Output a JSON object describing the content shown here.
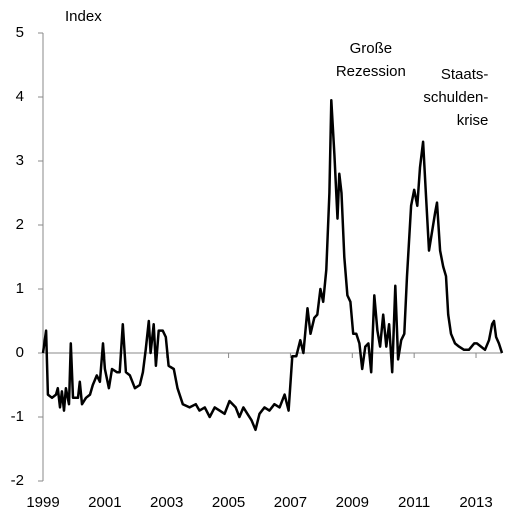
{
  "chart_data": {
    "type": "line",
    "y_label": "Index",
    "x": [
      1999.0,
      1999.1,
      1999.16,
      1999.29,
      1999.42,
      1999.48,
      1999.55,
      1999.61,
      1999.68,
      1999.74,
      1999.84,
      1999.9,
      1999.97,
      2000.13,
      2000.19,
      2000.26,
      2000.39,
      2000.52,
      2000.61,
      2000.74,
      2000.84,
      2000.94,
      2001.0,
      2001.13,
      2001.23,
      2001.39,
      2001.48,
      2001.58,
      2001.68,
      2001.81,
      2001.97,
      2002.13,
      2002.23,
      2002.32,
      2002.42,
      2002.48,
      2002.58,
      2002.65,
      2002.74,
      2002.87,
      2002.97,
      2003.06,
      2003.23,
      2003.35,
      2003.52,
      2003.74,
      2003.94,
      2004.06,
      2004.23,
      2004.39,
      2004.55,
      2004.71,
      2004.87,
      2005.03,
      2005.23,
      2005.35,
      2005.48,
      2005.61,
      2005.74,
      2005.87,
      2006.0,
      2006.16,
      2006.32,
      2006.48,
      2006.65,
      2006.81,
      2006.94,
      2007.06,
      2007.19,
      2007.32,
      2007.42,
      2007.55,
      2007.65,
      2007.77,
      2007.87,
      2007.97,
      2008.06,
      2008.16,
      2008.26,
      2008.32,
      2008.42,
      2008.52,
      2008.58,
      2008.65,
      2008.74,
      2008.84,
      2008.94,
      2009.03,
      2009.13,
      2009.23,
      2009.32,
      2009.42,
      2009.52,
      2009.61,
      2009.71,
      2009.81,
      2009.9,
      2010.0,
      2010.1,
      2010.19,
      2010.29,
      2010.39,
      2010.48,
      2010.58,
      2010.68,
      2010.77,
      2010.9,
      2011.0,
      2011.1,
      2011.19,
      2011.29,
      2011.39,
      2011.48,
      2011.58,
      2011.68,
      2011.74,
      2011.84,
      2011.94,
      2012.03,
      2012.1,
      2012.19,
      2012.32,
      2012.45,
      2012.61,
      2012.77,
      2012.94,
      2013.03,
      2013.16,
      2013.29,
      2013.42,
      2013.52,
      2013.58,
      2013.65,
      2013.74,
      2013.84
    ],
    "series": [
      {
        "name": "Index",
        "color": "#000000",
        "values": [
          0,
          0.35,
          -0.65,
          -0.7,
          -0.65,
          -0.55,
          -0.85,
          -0.6,
          -0.9,
          -0.55,
          -0.8,
          0.15,
          -0.7,
          -0.7,
          -0.45,
          -0.8,
          -0.7,
          -0.65,
          -0.5,
          -0.35,
          -0.45,
          0.15,
          -0.25,
          -0.55,
          -0.25,
          -0.3,
          -0.3,
          0.45,
          -0.3,
          -0.35,
          -0.55,
          -0.5,
          -0.3,
          0.05,
          0.5,
          0,
          0.45,
          -0.2,
          0.35,
          0.35,
          0.25,
          -0.2,
          -0.25,
          -0.55,
          -0.8,
          -0.85,
          -0.8,
          -0.9,
          -0.85,
          -1.0,
          -0.85,
          -0.9,
          -0.95,
          -0.75,
          -0.85,
          -1.0,
          -0.85,
          -0.95,
          -1.05,
          -1.2,
          -0.95,
          -0.85,
          -0.9,
          -0.8,
          -0.85,
          -0.65,
          -0.9,
          -0.05,
          -0.05,
          0.2,
          0,
          0.7,
          0.3,
          0.55,
          0.6,
          1.0,
          0.8,
          1.3,
          2.5,
          3.95,
          3.1,
          2.1,
          2.8,
          2.5,
          1.5,
          0.9,
          0.8,
          0.3,
          0.3,
          0.15,
          -0.25,
          0.1,
          0.15,
          -0.3,
          0.9,
          0.35,
          0.1,
          0.6,
          0.1,
          0.45,
          -0.3,
          1.05,
          -0.1,
          0.2,
          0.3,
          1.2,
          2.3,
          2.55,
          2.3,
          2.9,
          3.3,
          2.4,
          1.6,
          1.9,
          2.2,
          2.35,
          1.6,
          1.35,
          1.2,
          0.6,
          0.3,
          0.15,
          0.1,
          0.05,
          0.05,
          0.15,
          0.15,
          0.1,
          0.05,
          0.2,
          0.45,
          0.5,
          0.25,
          0.15,
          0
        ]
      }
    ],
    "xlim": [
      1999,
      2013.84
    ],
    "xticks": [
      1999,
      2001,
      2003,
      2005,
      2007,
      2009,
      2011,
      2013
    ],
    "ylim": [
      -2,
      5
    ],
    "yticks": [
      -2,
      -1,
      0,
      1,
      2,
      3,
      4,
      5
    ],
    "annotations": [
      {
        "x": 2009.6,
        "lines": [
          "Große",
          "Rezession"
        ]
      },
      {
        "x": 2013.4,
        "lines": [
          "Staats-",
          "schulden-",
          "krise"
        ]
      }
    ]
  }
}
